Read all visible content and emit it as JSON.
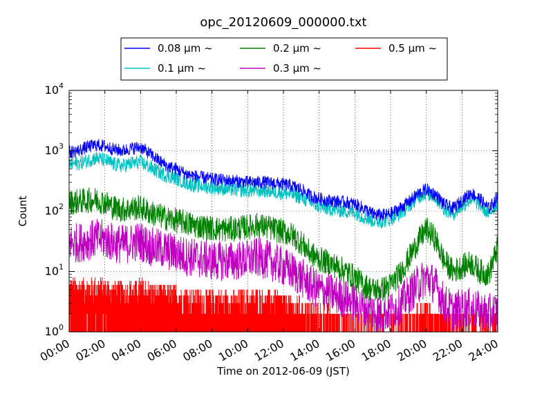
{
  "chart_data": {
    "type": "line",
    "title": "opc_20120609_000000.txt",
    "xlabel": "Time on 2012-06-09 (JST)",
    "ylabel": "Count",
    "x_tick_labels": [
      "00:00",
      "02:00",
      "04:00",
      "06:00",
      "08:00",
      "10:00",
      "12:00",
      "14:00",
      "16:00",
      "18:00",
      "20:00",
      "22:00",
      "24:00"
    ],
    "y_scale": "log",
    "ylim": [
      1,
      10000
    ],
    "xlim_hours": [
      0,
      24
    ],
    "y_ticks": [
      {
        "value": 1,
        "base": "10",
        "exp": "0"
      },
      {
        "value": 10,
        "base": "10",
        "exp": "1"
      },
      {
        "value": 100,
        "base": "10",
        "exp": "2"
      },
      {
        "value": 1000,
        "base": "10",
        "exp": "3"
      },
      {
        "value": 10000,
        "base": "10",
        "exp": "4"
      }
    ],
    "grid": true,
    "legend_position": "top-center",
    "x_hours": [
      0,
      0.5,
      1,
      1.5,
      2,
      2.5,
      3,
      3.5,
      4,
      4.5,
      5,
      5.5,
      6,
      6.5,
      7,
      7.5,
      8,
      8.5,
      9,
      9.5,
      10,
      10.5,
      11,
      11.5,
      12,
      12.5,
      13,
      13.5,
      14,
      14.5,
      15,
      15.5,
      16,
      16.5,
      17,
      17.5,
      18,
      18.5,
      19,
      19.5,
      20,
      20.5,
      21,
      21.5,
      22,
      22.5,
      23,
      23.5,
      24
    ],
    "series": [
      {
        "name": "0.08 μm ~",
        "color": "#0000ff",
        "values": [
          950,
          1000,
          1150,
          1250,
          1200,
          1050,
          1000,
          1100,
          1150,
          900,
          700,
          550,
          500,
          420,
          380,
          360,
          340,
          330,
          320,
          310,
          300,
          300,
          300,
          290,
          280,
          260,
          230,
          180,
          160,
          150,
          145,
          140,
          130,
          110,
          90,
          85,
          90,
          110,
          140,
          190,
          230,
          190,
          130,
          110,
          150,
          200,
          160,
          110,
          170
        ]
      },
      {
        "name": "0.1 μm ~",
        "color": "#00c0c0",
        "values": [
          600,
          620,
          680,
          760,
          700,
          600,
          560,
          620,
          650,
          540,
          450,
          380,
          350,
          300,
          270,
          260,
          250,
          240,
          230,
          225,
          220,
          220,
          220,
          210,
          200,
          190,
          170,
          140,
          120,
          110,
          105,
          100,
          95,
          80,
          70,
          68,
          75,
          90,
          120,
          170,
          200,
          170,
          110,
          90,
          120,
          160,
          130,
          90,
          140
        ]
      },
      {
        "name": "0.2 μm ~",
        "color": "#008000",
        "values": [
          140,
          145,
          150,
          155,
          140,
          115,
          105,
          110,
          115,
          95,
          85,
          75,
          70,
          65,
          58,
          55,
          52,
          50,
          50,
          52,
          55,
          58,
          55,
          50,
          45,
          40,
          30,
          20,
          16,
          14,
          12,
          10,
          8,
          6,
          5,
          5,
          6,
          9,
          16,
          30,
          50,
          35,
          15,
          10,
          12,
          14,
          10,
          9,
          25
        ]
      },
      {
        "name": "0.3 μm ~",
        "color": "#c000c0",
        "values": [
          30,
          30,
          32,
          35,
          34,
          30,
          28,
          30,
          32,
          26,
          24,
          22,
          20,
          18,
          17,
          16,
          15,
          15,
          15,
          15,
          16,
          17,
          16,
          14,
          12,
          10,
          8,
          6,
          5,
          4.5,
          4,
          3.5,
          3,
          2.5,
          2.2,
          2,
          2.2,
          2.8,
          4,
          6,
          8,
          6,
          3,
          2.2,
          2.5,
          2.5,
          2.2,
          2,
          2.2
        ]
      },
      {
        "name": "0.5 μm ~",
        "color": "#ff0000",
        "values": [
          4,
          4,
          4,
          4,
          4,
          3.5,
          3.5,
          3.5,
          4,
          3.5,
          3,
          3,
          3,
          2.8,
          2.6,
          2.5,
          2.5,
          2.4,
          2.4,
          2.4,
          2.5,
          2.6,
          2.5,
          2.4,
          2.2,
          2,
          1.8,
          1.6,
          1.4,
          1.3,
          1.2,
          1.1,
          1.05,
          1,
          1,
          1,
          1,
          1.05,
          1.1,
          1.3,
          1.5,
          1.3,
          1.05,
          1,
          1,
          1,
          1,
          1,
          1
        ]
      }
    ]
  }
}
